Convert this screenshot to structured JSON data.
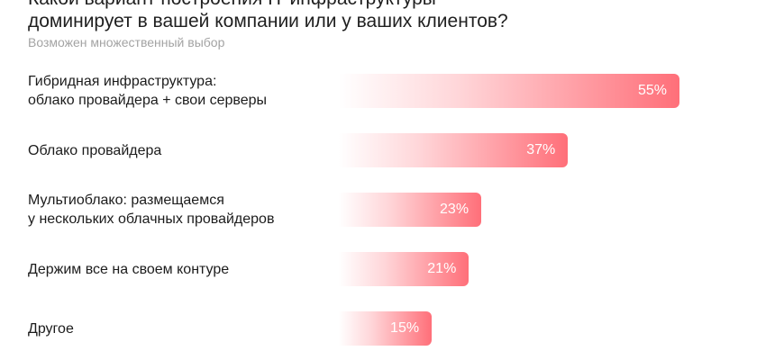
{
  "header": {
    "title": "Какой вариант построения IT-инфраструктуры\nдоминирует в вашей компании или у ваших клиентов?",
    "subtitle": "Возможен множественный выбор"
  },
  "colors": {
    "bar_start": "#ffffff",
    "bar_end": "#ff6f79",
    "value_text": "#ffffff"
  },
  "chart_data": {
    "type": "bar",
    "orientation": "horizontal",
    "title": "Какой вариант построения IT-инфраструктуры доминирует в вашей компании или у ваших клиентов?",
    "subtitle": "Возможен множественный выбор",
    "categories": [
      "Гибридная инфраструктура:\nоблако провайдера + свои серверы",
      "Облако провайдера",
      "Мультиоблако: размещаемся\nу нескольких облачных провайдеров",
      "Держим все на своем контуре",
      "Другое"
    ],
    "values": [
      55,
      37,
      23,
      21,
      15
    ],
    "value_labels": [
      "55%",
      "37%",
      "23%",
      "21%",
      "15%"
    ],
    "unit": "%",
    "grid": false,
    "legend": "none"
  }
}
